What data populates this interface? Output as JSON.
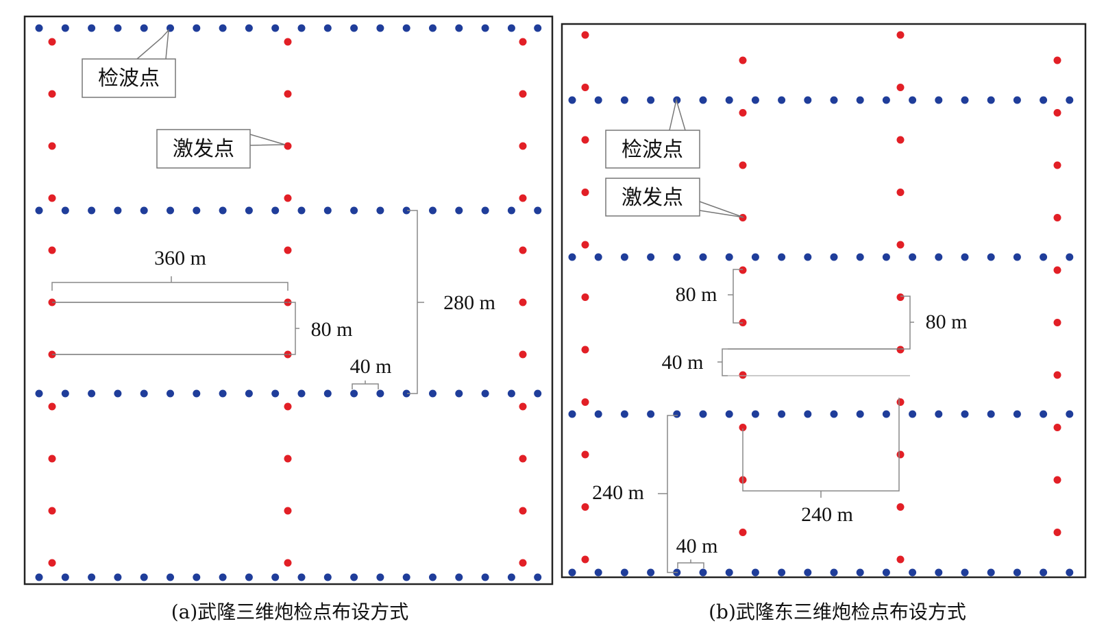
{
  "colors": {
    "receiver_point": "#1f3d9a",
    "source_point": "#e21f26",
    "frame": "#222222",
    "bracket": "#8a8a8a"
  },
  "panels": [
    {
      "id": "a",
      "caption": "(a)武隆三维炮检点布设方式",
      "callouts": {
        "receiver": "检波点",
        "source": "激发点"
      },
      "dimensions": {
        "source_line_spacing": "360 m",
        "source_point_spacing": "80 m",
        "receiver_line_spacing": "280 m",
        "receiver_point_spacing": "40 m"
      }
    },
    {
      "id": "b",
      "caption": "(b)武隆东三维炮检点布设方式",
      "callouts": {
        "receiver": "检波点",
        "source": "激发点"
      },
      "dimensions": {
        "source_point_spacing_left": "80 m",
        "source_point_spacing_right": "80 m",
        "source_stagger": "40 m",
        "receiver_line_spacing": "240 m",
        "source_line_spacing": "240 m",
        "receiver_point_spacing": "40 m"
      }
    }
  ]
}
